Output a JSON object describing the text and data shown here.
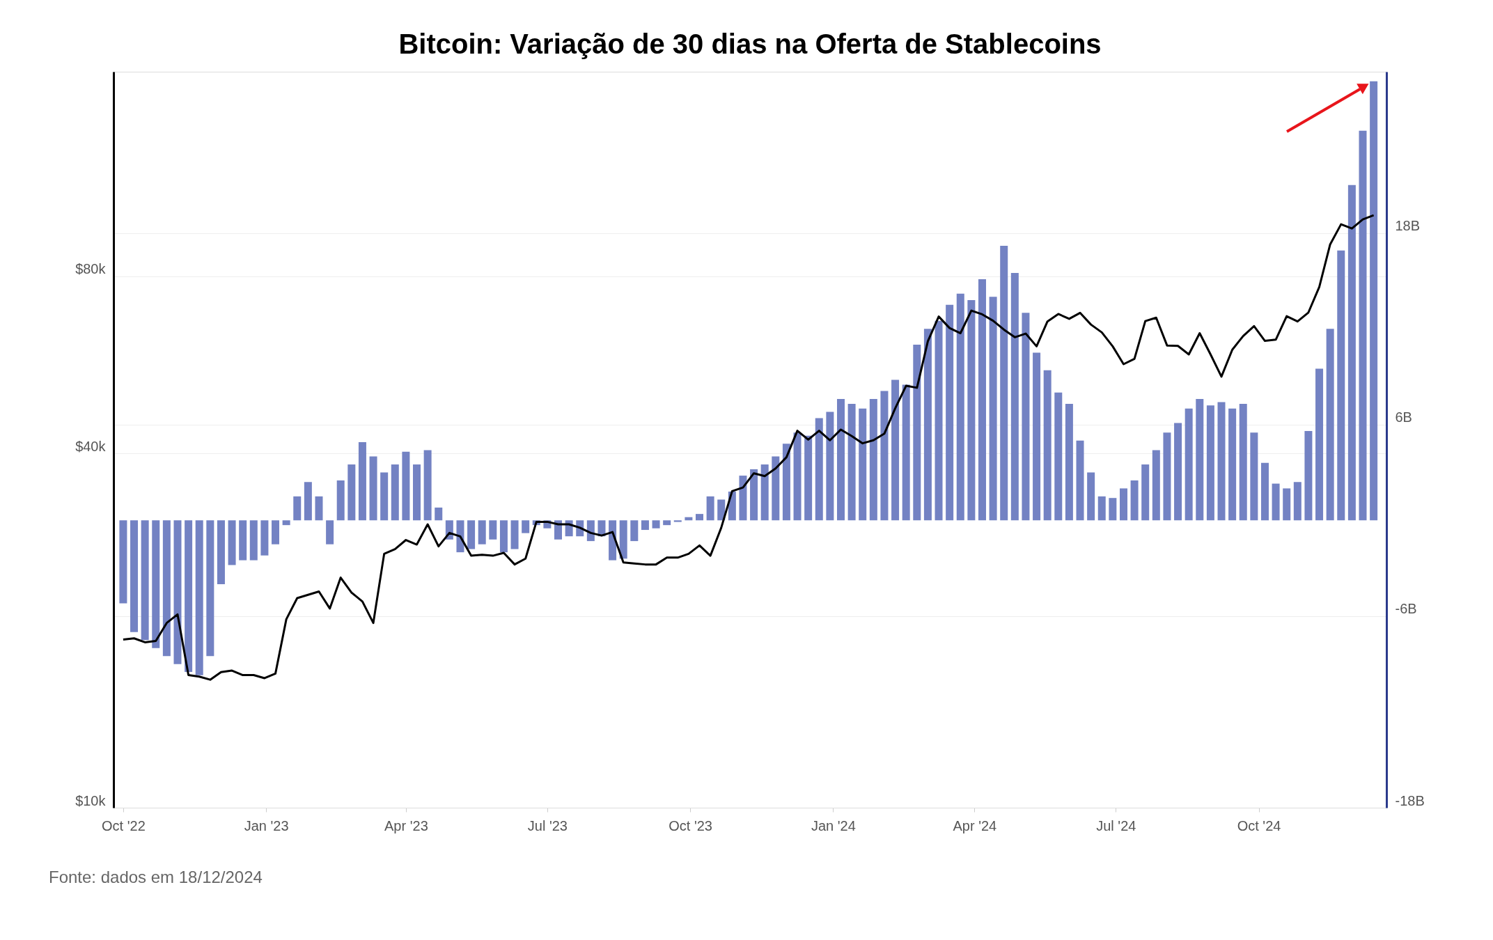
{
  "chart_data": {
    "type": "line",
    "title": "Bitcoin: Variação de 30 dias na Oferta de Stablecoins",
    "annotations": [
      "Fonte: dados em 18/12/2024"
    ],
    "x": [
      "2022-10-01",
      "2022-10-08",
      "2022-10-15",
      "2022-10-22",
      "2022-10-29",
      "2022-11-05",
      "2022-11-12",
      "2022-11-19",
      "2022-11-26",
      "2022-12-03",
      "2022-12-10",
      "2022-12-17",
      "2022-12-24",
      "2022-12-31",
      "2023-01-07",
      "2023-01-14",
      "2023-01-21",
      "2023-01-28",
      "2023-02-04",
      "2023-02-11",
      "2023-02-18",
      "2023-02-25",
      "2023-03-04",
      "2023-03-11",
      "2023-03-18",
      "2023-03-25",
      "2023-04-01",
      "2023-04-08",
      "2023-04-15",
      "2023-04-22",
      "2023-04-29",
      "2023-05-06",
      "2023-05-13",
      "2023-05-20",
      "2023-05-27",
      "2023-06-03",
      "2023-06-10",
      "2023-06-17",
      "2023-06-24",
      "2023-07-01",
      "2023-07-08",
      "2023-07-15",
      "2023-07-22",
      "2023-07-29",
      "2023-08-05",
      "2023-08-12",
      "2023-08-19",
      "2023-08-26",
      "2023-09-02",
      "2023-09-09",
      "2023-09-16",
      "2023-09-23",
      "2023-09-30",
      "2023-10-07",
      "2023-10-14",
      "2023-10-21",
      "2023-10-28",
      "2023-11-04",
      "2023-11-11",
      "2023-11-18",
      "2023-11-25",
      "2023-12-02",
      "2023-12-09",
      "2023-12-16",
      "2023-12-23",
      "2023-12-30",
      "2024-01-06",
      "2024-01-13",
      "2024-01-20",
      "2024-01-27",
      "2024-02-03",
      "2024-02-10",
      "2024-02-17",
      "2024-02-24",
      "2024-03-02",
      "2024-03-09",
      "2024-03-16",
      "2024-03-23",
      "2024-03-30",
      "2024-04-06",
      "2024-04-13",
      "2024-04-20",
      "2024-04-27",
      "2024-05-04",
      "2024-05-11",
      "2024-05-18",
      "2024-05-25",
      "2024-06-01",
      "2024-06-08",
      "2024-06-15",
      "2024-06-22",
      "2024-06-29",
      "2024-07-06",
      "2024-07-13",
      "2024-07-20",
      "2024-07-27",
      "2024-08-03",
      "2024-08-10",
      "2024-08-17",
      "2024-08-24",
      "2024-08-31",
      "2024-09-07",
      "2024-09-14",
      "2024-09-21",
      "2024-09-28",
      "2024-10-05",
      "2024-10-12",
      "2024-10-19",
      "2024-10-26",
      "2024-11-02",
      "2024-11-09",
      "2024-11-16",
      "2024-11-23",
      "2024-11-30",
      "2024-12-07",
      "2024-12-14"
    ],
    "series": [
      {
        "type": "bar",
        "axis": "y2",
        "color": "#6b7bc0",
        "values": [
          -5.2,
          -7,
          -7.5,
          -8,
          -8.5,
          -9,
          -9.5,
          -9.7,
          -8.5,
          -4,
          -2.8,
          -2.5,
          -2.5,
          -2.2,
          -1.5,
          -0.3,
          1.5,
          2.4,
          1.5,
          -1.5,
          2.5,
          3.5,
          4.9,
          4.0,
          3.0,
          3.5,
          4.3,
          3.5,
          4.4,
          0.8,
          -1.2,
          -2.0,
          -1.8,
          -1.5,
          -1.2,
          -2.0,
          -1.8,
          -0.8,
          -0.3,
          -0.5,
          -1.2,
          -1.0,
          -1.0,
          -1.3,
          -1.0,
          -2.5,
          -2.4,
          -1.3,
          -0.6,
          -0.5,
          -0.3,
          -0.1,
          0.2,
          0.4,
          1.5,
          1.3,
          1.8,
          2.8,
          3.2,
          3.5,
          4.0,
          4.8,
          5.5,
          5.3,
          6.4,
          6.8,
          7.6,
          7.3,
          7.0,
          7.6,
          8.1,
          8.8,
          8.5,
          11.0,
          12.0,
          12.5,
          13.5,
          14.2,
          13.8,
          15.1,
          14.0,
          17.2,
          15.5,
          13.0,
          10.5,
          9.4,
          8.0,
          7.3,
          5.0,
          3.0,
          1.5,
          1.4,
          2.0,
          2.5,
          3.5,
          4.4,
          5.5,
          6.1,
          7.0,
          7.6,
          7.2,
          7.4,
          7.0,
          7.3,
          5.5,
          3.6,
          2.3,
          2.0,
          2.4,
          5.6,
          9.5,
          12.0,
          16.9,
          21.0,
          24.4,
          27.5
        ]
      },
      {
        "color": "#000000",
        "values": [
          19300,
          19400,
          19100,
          19200,
          20600,
          21300,
          16800,
          16700,
          16500,
          17000,
          17100,
          16800,
          16800,
          16600,
          16900,
          20900,
          22700,
          23000,
          23300,
          21800,
          24600,
          23200,
          22400,
          20600,
          27000,
          27500,
          28500,
          28000,
          30300,
          27800,
          29300,
          28900,
          26800,
          26900,
          26800,
          27100,
          25900,
          26500,
          30600,
          30600,
          30300,
          30300,
          29900,
          29300,
          29000,
          29400,
          26100,
          26000,
          25900,
          25900,
          26600,
          26600,
          27000,
          27900,
          26800,
          29900,
          34500,
          35000,
          37000,
          36600,
          37700,
          39400,
          43700,
          42200,
          43700,
          42100,
          43900,
          42800,
          41600,
          42100,
          43200,
          47700,
          52100,
          51700,
          62000,
          68300,
          65300,
          64000,
          69900,
          68900,
          67200,
          64900,
          63000,
          63900,
          60800,
          67000,
          69000,
          67700,
          69300,
          66200,
          64200,
          60800,
          56700,
          57900,
          67100,
          68000,
          61000,
          60900,
          58900,
          64000,
          58900,
          54000,
          60000,
          63300,
          65800,
          62100,
          62400,
          68400,
          67000,
          69400,
          76700,
          90600,
          98000,
          96400,
          99900,
          101500
        ]
      }
    ],
    "log": "y",
    "ylim": [
      10000,
      178000
    ],
    "yticks": [
      {
        "value": 10000,
        "label": "$10k"
      },
      {
        "value": 40000,
        "label": "$40k"
      },
      {
        "value": 80000,
        "label": "$80k"
      }
    ],
    "y2lim": [
      -18,
      28.1
    ],
    "y2ticks": [
      {
        "value": -18,
        "label": "-18B"
      },
      {
        "value": -6,
        "label": "-6B"
      },
      {
        "value": 6,
        "label": "6B"
      },
      {
        "value": 18,
        "label": "18B"
      }
    ],
    "xlim": [
      "2022-09-27",
      "2024-12-20"
    ],
    "xticks": [
      {
        "value": "2022-10-01",
        "label": "Oct '22"
      },
      {
        "value": "2023-01-01",
        "label": "Jan '23"
      },
      {
        "value": "2023-04-01",
        "label": "Apr '23"
      },
      {
        "value": "2023-07-01",
        "label": "Jul '23"
      },
      {
        "value": "2023-10-01",
        "label": "Oct '23"
      },
      {
        "value": "2024-01-01",
        "label": "Jan '24"
      },
      {
        "value": "2024-04-01",
        "label": "Apr '24"
      },
      {
        "value": "2024-07-01",
        "label": "Jul '24"
      },
      {
        "value": "2024-10-01",
        "label": "Oct '24"
      }
    ],
    "grid": "y"
  }
}
